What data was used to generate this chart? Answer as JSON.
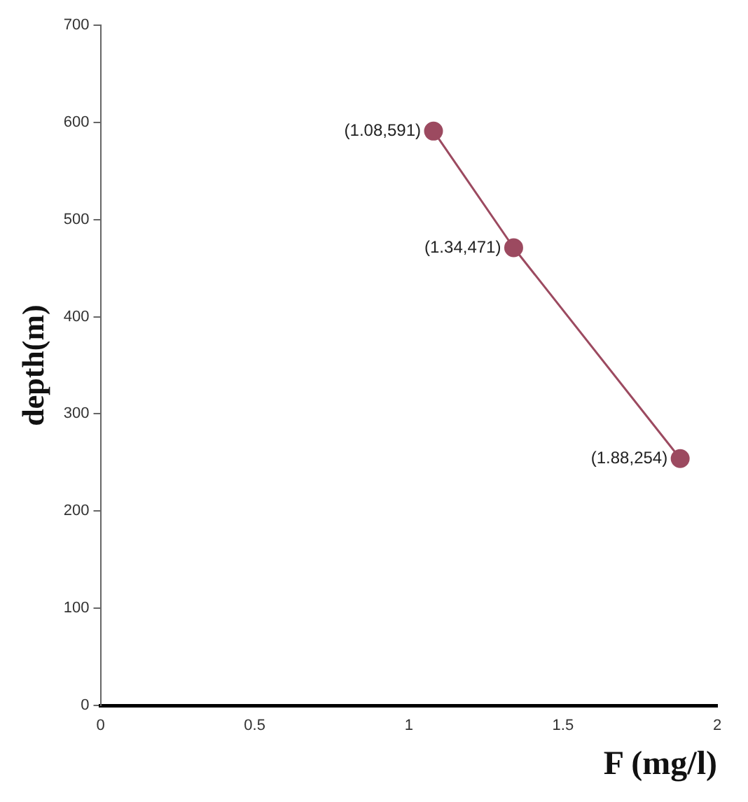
{
  "chart_data": {
    "type": "line",
    "xlabel": "F (mg/l)",
    "ylabel": "depth(m)",
    "x": [
      1.08,
      1.34,
      1.88
    ],
    "series": [
      {
        "color": "#9c4a60",
        "values": [
          591,
          471,
          254
        ],
        "value_labels": [
          "(1.08,591)",
          "(1.34,471)",
          "(1.88,254)"
        ]
      }
    ],
    "xlim": [
      0,
      2
    ],
    "xticks": [
      0,
      0.5,
      1,
      1.5,
      2
    ],
    "ylim": [
      0,
      700
    ],
    "yticks": [
      0,
      100,
      200,
      300,
      400,
      500,
      600,
      700
    ],
    "grid": false,
    "legend": false,
    "marker": "circle",
    "line_style": "solid"
  }
}
